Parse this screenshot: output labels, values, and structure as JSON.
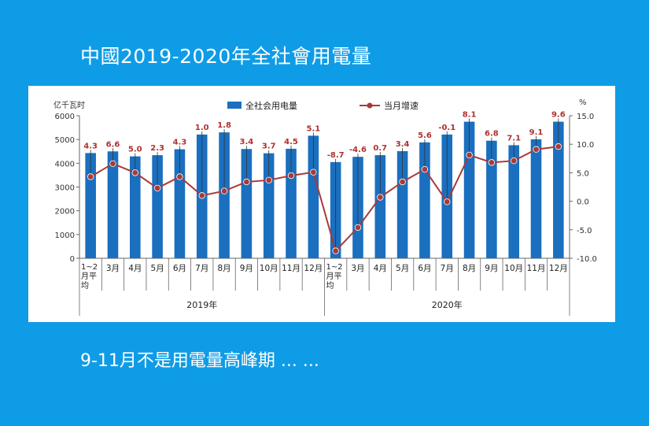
{
  "title": "中國2019-2020年全社會用電量",
  "caption": "9-11月不是用電量高峰期 ... ...",
  "chart_data": {
    "type": "bar",
    "left_axis_unit": "亿千瓦时",
    "right_axis_unit": "%",
    "left_ylim": [
      0,
      6000
    ],
    "left_ticks": [
      "0",
      "1000",
      "2000",
      "3000",
      "4000",
      "5000",
      "6000"
    ],
    "right_ylim": [
      -10,
      15
    ],
    "right_ticks": [
      "-10.0",
      "-5.0",
      "0.0",
      "5.0",
      "10.0",
      "15.0"
    ],
    "legend_position": "top",
    "colors": {
      "bar": "#1a6fbf",
      "line": "#a83a3a",
      "label": "#b03030"
    },
    "categories": [
      "1~2月平均",
      "3月",
      "4月",
      "5月",
      "6月",
      "7月",
      "8月",
      "9月",
      "10月",
      "11月",
      "12月",
      "1~2月平均",
      "3月",
      "4月",
      "5月",
      "6月",
      "7月",
      "8月",
      "9月",
      "10月",
      "11月",
      "12月"
    ],
    "category_labels": [
      [
        "1~2",
        "月平",
        "均"
      ],
      [
        "3月"
      ],
      [
        "4月"
      ],
      [
        "5月"
      ],
      [
        "6月"
      ],
      [
        "7月"
      ],
      [
        "8月"
      ],
      [
        "9月"
      ],
      [
        "10月"
      ],
      [
        "11月"
      ],
      [
        "12月"
      ],
      [
        "1~2",
        "月平",
        "均"
      ],
      [
        "3月"
      ],
      [
        "4月"
      ],
      [
        "5月"
      ],
      [
        "6月"
      ],
      [
        "7月"
      ],
      [
        "8月"
      ],
      [
        "9月"
      ],
      [
        "10月"
      ],
      [
        "11月"
      ],
      [
        "12月"
      ]
    ],
    "year_groups": [
      {
        "label": "2019年",
        "count": 11
      },
      {
        "label": "2020年",
        "count": 11
      }
    ],
    "series": [
      {
        "name": "全社会用电量",
        "type": "bar",
        "axis": "left",
        "values": [
          4430,
          4500,
          4290,
          4340,
          4590,
          5210,
          5300,
          4600,
          4420,
          4610,
          5160,
          4050,
          4270,
          4340,
          4510,
          4880,
          5210,
          5750,
          4950,
          4760,
          5010,
          5750
        ]
      },
      {
        "name": "当月增速",
        "type": "line",
        "axis": "right",
        "values": [
          4.3,
          6.6,
          5.0,
          2.3,
          4.3,
          1.0,
          1.8,
          3.4,
          3.7,
          4.5,
          5.1,
          -8.7,
          -4.6,
          0.7,
          3.4,
          5.6,
          -0.1,
          8.1,
          6.8,
          7.1,
          9.1,
          9.6
        ],
        "labels": [
          "4.3",
          "6.6",
          "5.0",
          "2.3",
          "4.3",
          "1.0",
          "1.8",
          "3.4",
          "3.7",
          "4.5",
          "5.1",
          "-8.7",
          "-4.6",
          "0.7",
          "3.4",
          "5.6",
          "-0.1",
          "8.1",
          "6.8",
          "7.1",
          "9.1",
          "9.6"
        ]
      }
    ]
  }
}
